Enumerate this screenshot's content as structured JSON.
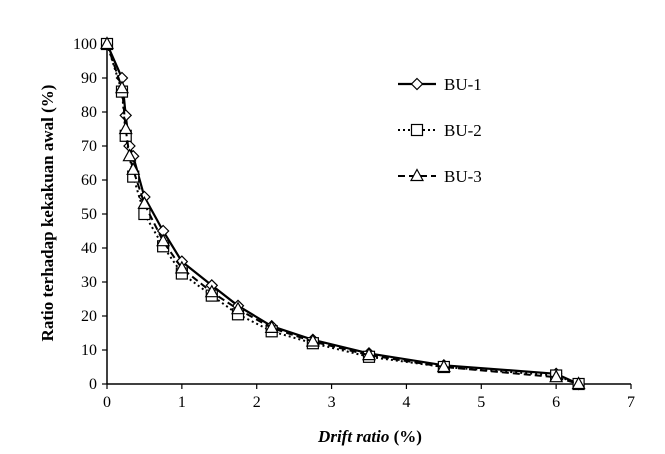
{
  "chart_data": {
    "type": "line",
    "title": "",
    "xlabel_italic": "Drift ratio",
    "xlabel_rest": " (%)",
    "ylabel": "Ratio terhadap kekakuan awal (%)",
    "xlim": [
      0,
      7
    ],
    "ylim": [
      0,
      100
    ],
    "xticks": [
      "0",
      "1",
      "2",
      "3",
      "4",
      "5",
      "6",
      "7"
    ],
    "yticks": [
      "0",
      "10",
      "20",
      "30",
      "40",
      "50",
      "60",
      "70",
      "80",
      "90",
      "100"
    ],
    "grid": false,
    "legend_position": "top-right",
    "series": [
      {
        "name": "BU-1",
        "marker": "diamond",
        "line_style": "solid",
        "color": "#000000",
        "x": [
          0,
          0.2,
          0.25,
          0.3,
          0.35,
          0.5,
          0.75,
          1.0,
          1.4,
          1.75,
          2.2,
          2.75,
          3.5,
          4.5,
          6.0,
          6.3
        ],
        "y": [
          100,
          90,
          79,
          70,
          67,
          55,
          45,
          36,
          29,
          23,
          17,
          13,
          9,
          5.5,
          3,
          0
        ]
      },
      {
        "name": "BU-2",
        "marker": "square",
        "line_style": "dotted",
        "color": "#000000",
        "x": [
          0,
          0.2,
          0.25,
          0.35,
          0.5,
          0.75,
          1.0,
          1.4,
          1.75,
          2.2,
          2.75,
          3.5,
          4.5,
          6.0,
          6.3
        ],
        "y": [
          100,
          86,
          73,
          61,
          50,
          40.5,
          32.5,
          26,
          20.5,
          15.5,
          12,
          8,
          5,
          2.5,
          0
        ]
      },
      {
        "name": "BU-3",
        "marker": "triangle",
        "line_style": "dashed",
        "color": "#000000",
        "x": [
          0,
          0.2,
          0.25,
          0.3,
          0.35,
          0.5,
          0.75,
          1.0,
          1.4,
          1.75,
          2.2,
          2.75,
          3.5,
          4.5,
          6.0,
          6.3
        ],
        "y": [
          100,
          87,
          75,
          67,
          63,
          53,
          42,
          34,
          27,
          22,
          16.5,
          12.5,
          8.5,
          5,
          2,
          0
        ]
      }
    ]
  }
}
